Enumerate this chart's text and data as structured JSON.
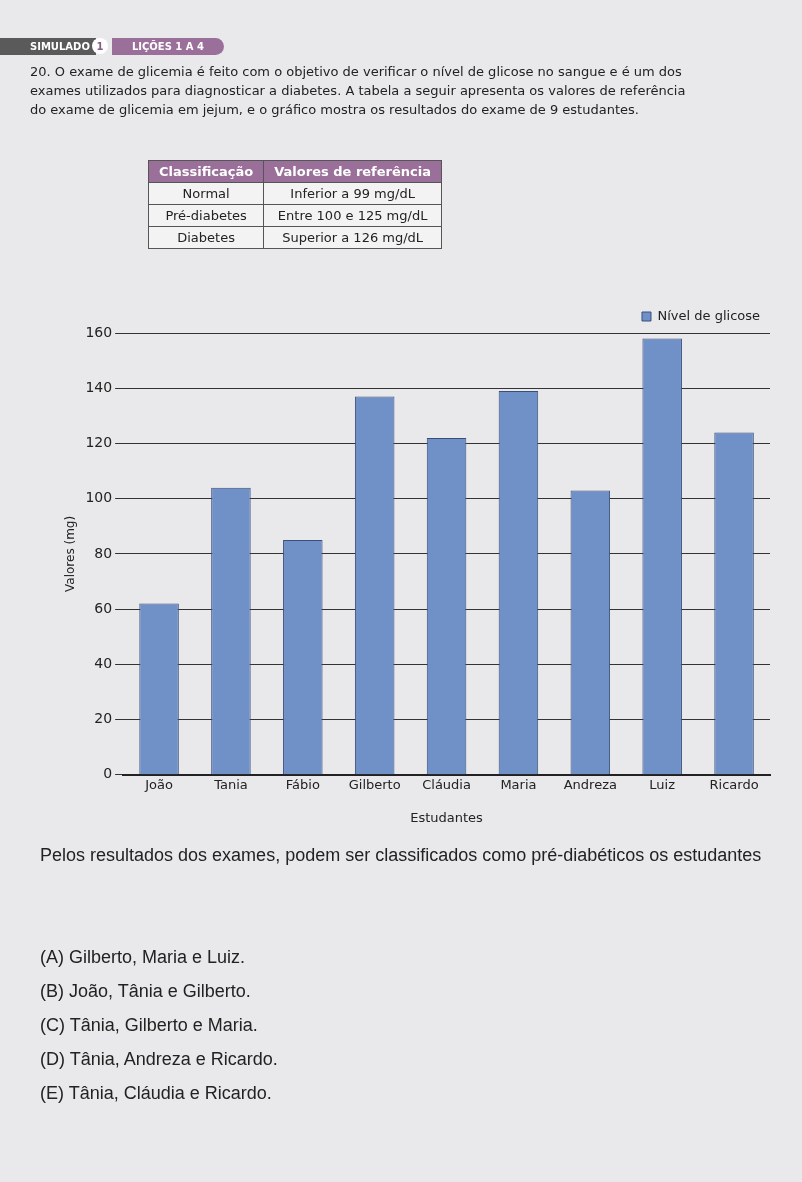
{
  "chart_data": {
    "type": "bar",
    "title": "20. O exame de glicemia é feito com o objetivo de verificar o nível de glicose no sangue e é um dos exames utilizados para diagnosticar a diabetes. A tabela a seguir apresenta os valores de referência do exame de glicemia em jejum, e o gráfico mostra os resultados do exame de 9 estudantes.",
    "xlabel": "Estudantes",
    "ylabel": "Valores (mg)",
    "categories": [
      "João",
      "Tania",
      "Fábio",
      "Gilberto",
      "Cláudia",
      "Maria",
      "Andreza",
      "Luiz",
      "Ricardo"
    ],
    "series": [
      {
        "name": "Nível de glicose",
        "color": "#7090c8",
        "values": [
          62,
          104,
          85,
          137,
          122,
          139,
          103,
          158,
          124
        ]
      }
    ],
    "ylim": [
      0,
      160
    ],
    "yticks": [
      0,
      20,
      40,
      60,
      80,
      100,
      120,
      140,
      160
    ],
    "grid": "y",
    "legend": "top right",
    "annotations": [
      "SIMULADO",
      "1",
      "LIÇÕES 1 A 4",
      "Classificação",
      "Valores de referência",
      "Normal",
      "Inferior a 99 mg/dL",
      "Pré-diabetes",
      "Entre 100 e 125 mg/dL",
      "Diabetes",
      "Superior a 126 mg/dL",
      "Pelos resultados dos exames, podem ser classificados como pré-diabéticos os estudantes",
      "(A) Gilberto, Maria e Luiz.",
      "(B) João, Tânia e Gilberto.",
      "(C) Tânia, Gilberto e Maria.",
      "(D) Tânia, Andreza e Ricardo.",
      "(E) Tânia, Cláudia e Ricardo."
    ]
  }
}
